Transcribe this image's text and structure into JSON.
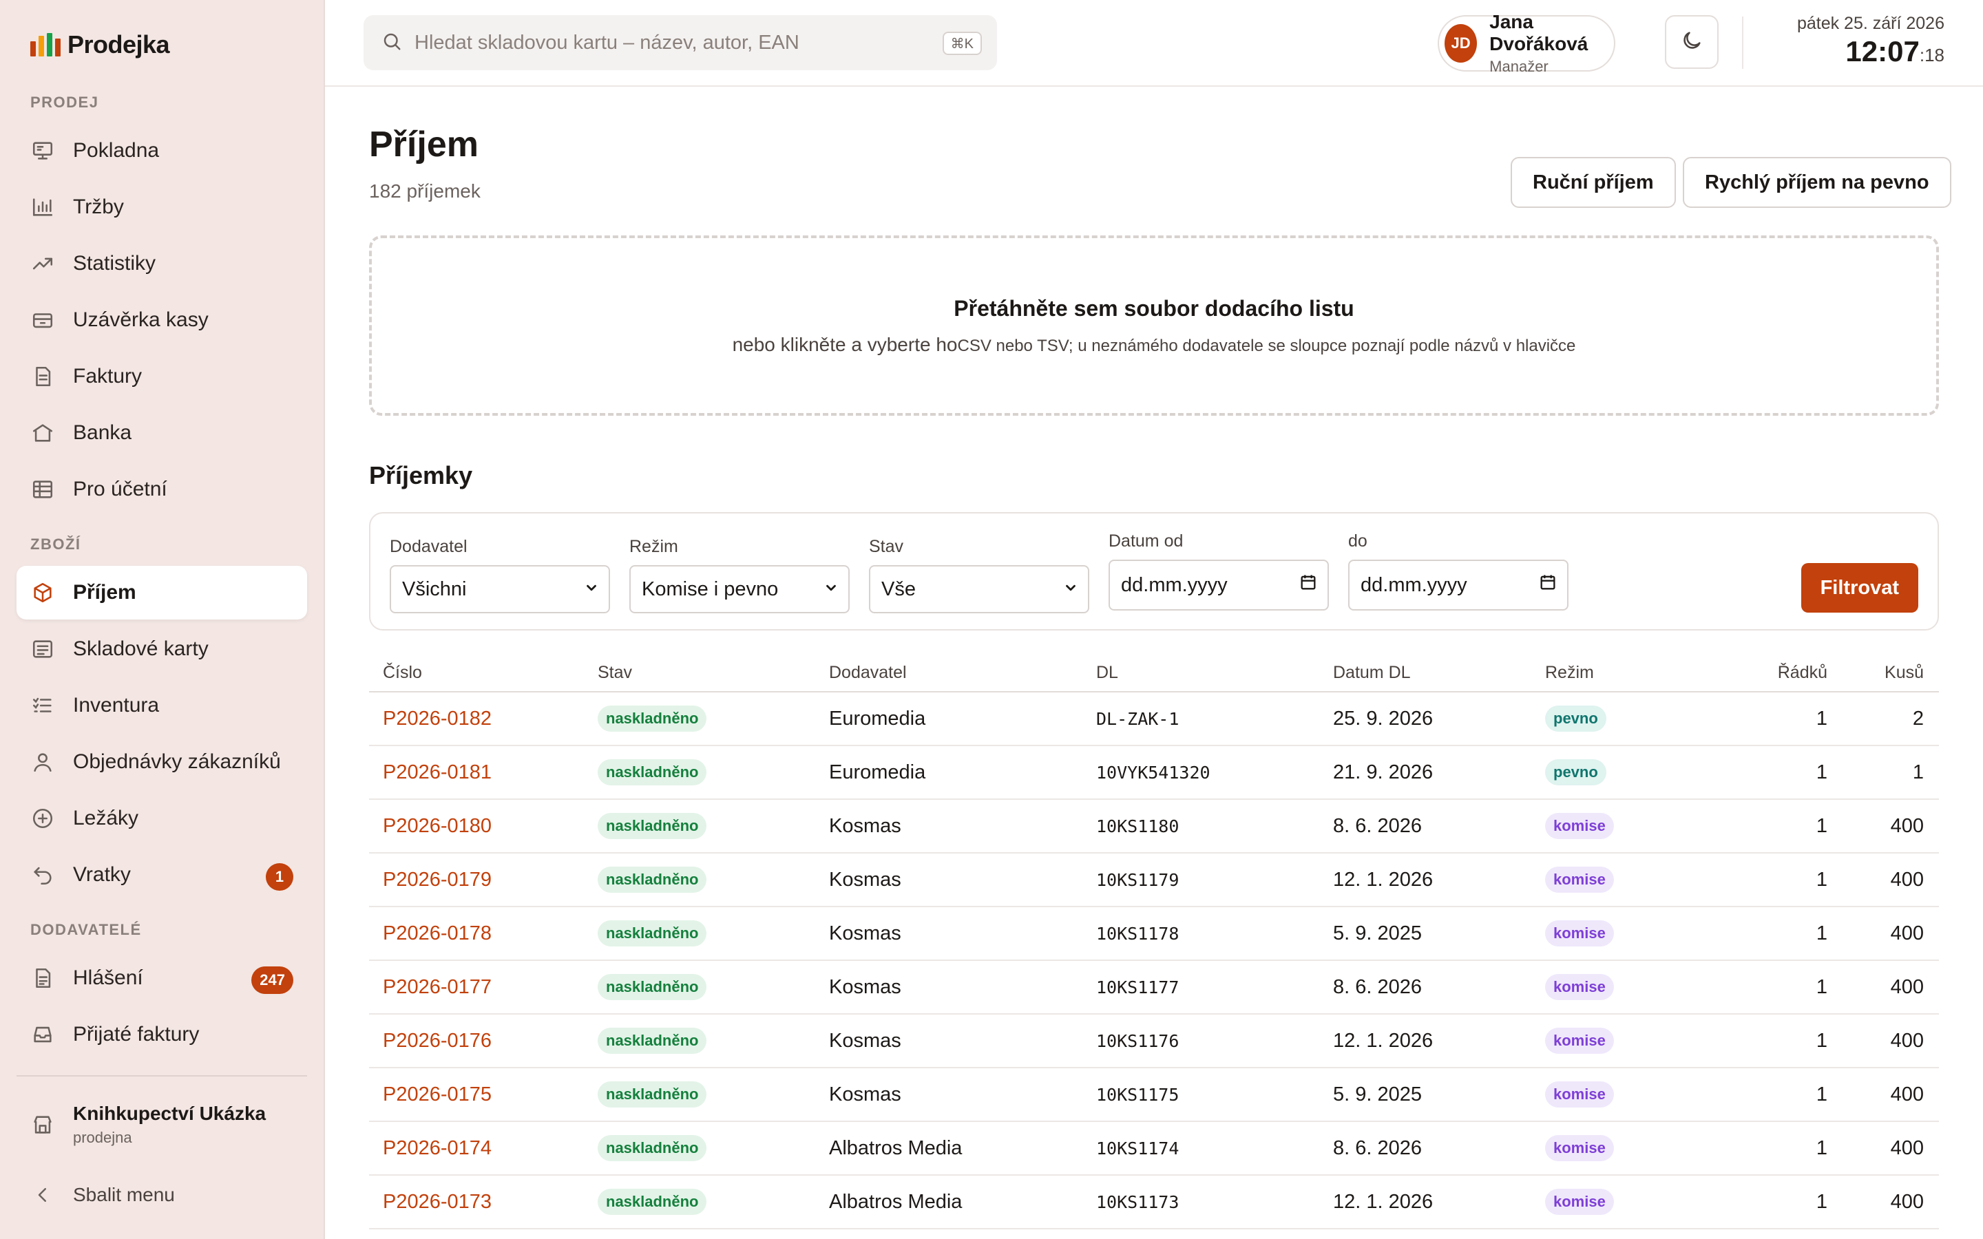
{
  "app": {
    "name": "Prodejka"
  },
  "colors": {
    "accent": "#c2410c",
    "sidebar_bg": "#f3e6e3",
    "status_green": "#15803d",
    "mode_purple": "#7e3fd6",
    "mode_teal": "#0f766e"
  },
  "sidebar": {
    "sections": [
      {
        "label": "PRODEJ",
        "items": [
          {
            "label": "Pokladna",
            "icon": "register-icon"
          },
          {
            "label": "Tržby",
            "icon": "bar-chart-icon"
          },
          {
            "label": "Statistiky",
            "icon": "trend-icon"
          },
          {
            "label": "Uzávěrka kasy",
            "icon": "cash-drawer-icon"
          },
          {
            "label": "Faktury",
            "icon": "document-icon"
          },
          {
            "label": "Banka",
            "icon": "bank-icon"
          },
          {
            "label": "Pro účetní",
            "icon": "table-icon"
          }
        ]
      },
      {
        "label": "ZBOŽÍ",
        "items": [
          {
            "label": "Příjem",
            "icon": "box-icon",
            "active": true
          },
          {
            "label": "Skladové karty",
            "icon": "list-card-icon"
          },
          {
            "label": "Inventura",
            "icon": "checklist-icon"
          },
          {
            "label": "Objednávky zákazníků",
            "icon": "user-icon"
          },
          {
            "label": "Ležáky",
            "icon": "plus-circle-icon"
          },
          {
            "label": "Vratky",
            "icon": "return-arrow-icon",
            "badge": "1"
          }
        ]
      },
      {
        "label": "DODAVATELÉ",
        "items": [
          {
            "label": "Hlášení",
            "icon": "report-icon",
            "badge": "247"
          },
          {
            "label": "Přijaté faktury",
            "icon": "inbox-icon"
          }
        ]
      }
    ],
    "store": {
      "name": "Knihkupectví Ukázka",
      "type": "prodejna"
    },
    "collapse_label": "Sbalit menu"
  },
  "topbar": {
    "search_placeholder": "Hledat skladovou kartu – název, autor, EAN",
    "search_shortcut": "⌘K",
    "user": {
      "initials": "JD",
      "name": "Jana Dvořáková",
      "role": "Manažer"
    },
    "date": "pátek 25. září 2026",
    "time": "12:07",
    "seconds": ":18"
  },
  "page": {
    "title": "Příjem",
    "subtitle": "182 příjemek",
    "buttons": {
      "manual": "Ruční příjem",
      "quick": "Rychlý příjem na pevno"
    },
    "dropzone": {
      "title": "Přetáhněte sem soubor dodacího listu",
      "subtitle": "nebo klikněte a vyberte ho",
      "hint": "CSV nebo TSV; u neznámého dodavatele se sloupce poznají podle názvů v hlavičce"
    },
    "section_title": "Příjemky"
  },
  "filters": {
    "supplier": {
      "label": "Dodavatel",
      "value": "Všichni"
    },
    "mode": {
      "label": "Režim",
      "value": "Komise i pevno"
    },
    "status": {
      "label": "Stav",
      "value": "Vše"
    },
    "date_from": {
      "label": "Datum od",
      "placeholder": "dd.mm.yyyy"
    },
    "date_to": {
      "label": "do",
      "placeholder": "dd.mm.yyyy"
    },
    "submit": "Filtrovat"
  },
  "table": {
    "columns": [
      "Číslo",
      "Stav",
      "Dodavatel",
      "DL",
      "Datum DL",
      "Režim",
      "Řádků",
      "Kusů"
    ],
    "rows": [
      {
        "number": "P2026-0182",
        "status": "naskladněno",
        "supplier": "Euromedia",
        "dl": "DL-ZAK-1",
        "date": "25. 9. 2026",
        "mode": "pevno",
        "lines": "1",
        "pieces": "2"
      },
      {
        "number": "P2026-0181",
        "status": "naskladněno",
        "supplier": "Euromedia",
        "dl": "10VYK541320",
        "date": "21. 9. 2026",
        "mode": "pevno",
        "lines": "1",
        "pieces": "1"
      },
      {
        "number": "P2026-0180",
        "status": "naskladněno",
        "supplier": "Kosmas",
        "dl": "10KS1180",
        "date": "8. 6. 2026",
        "mode": "komise",
        "lines": "1",
        "pieces": "400"
      },
      {
        "number": "P2026-0179",
        "status": "naskladněno",
        "supplier": "Kosmas",
        "dl": "10KS1179",
        "date": "12. 1. 2026",
        "mode": "komise",
        "lines": "1",
        "pieces": "400"
      },
      {
        "number": "P2026-0178",
        "status": "naskladněno",
        "supplier": "Kosmas",
        "dl": "10KS1178",
        "date": "5. 9. 2025",
        "mode": "komise",
        "lines": "1",
        "pieces": "400"
      },
      {
        "number": "P2026-0177",
        "status": "naskladněno",
        "supplier": "Kosmas",
        "dl": "10KS1177",
        "date": "8. 6. 2026",
        "mode": "komise",
        "lines": "1",
        "pieces": "400"
      },
      {
        "number": "P2026-0176",
        "status": "naskladněno",
        "supplier": "Kosmas",
        "dl": "10KS1176",
        "date": "12. 1. 2026",
        "mode": "komise",
        "lines": "1",
        "pieces": "400"
      },
      {
        "number": "P2026-0175",
        "status": "naskladněno",
        "supplier": "Kosmas",
        "dl": "10KS1175",
        "date": "5. 9. 2025",
        "mode": "komise",
        "lines": "1",
        "pieces": "400"
      },
      {
        "number": "P2026-0174",
        "status": "naskladněno",
        "supplier": "Albatros Media",
        "dl": "10KS1174",
        "date": "8. 6. 2026",
        "mode": "komise",
        "lines": "1",
        "pieces": "400"
      },
      {
        "number": "P2026-0173",
        "status": "naskladněno",
        "supplier": "Albatros Media",
        "dl": "10KS1173",
        "date": "12. 1. 2026",
        "mode": "komise",
        "lines": "1",
        "pieces": "400"
      }
    ]
  }
}
